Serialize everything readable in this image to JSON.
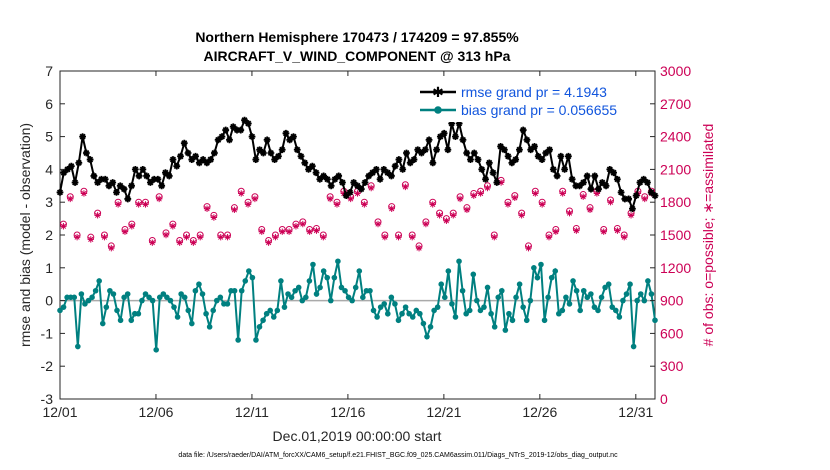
{
  "chart_data": {
    "type": "line",
    "title_line1": "Northern Hemisphere 170473 / 174209 = 97.855%",
    "title_line2": "AIRCRAFT_V_WIND_COMPONENT @ 313 hPa",
    "xlabel": "Dec.01,2019 00:00:00 start",
    "ylabel_left": "rmse and bias (model - observation)",
    "ylabel_right": "# of obs: o=possible; ∗=assimilated",
    "xlim": [
      0,
      31
    ],
    "ylim_left": [
      -3,
      7
    ],
    "ylim_right": [
      0,
      3000
    ],
    "x_ticks": [
      {
        "value": 0,
        "label": "12/01"
      },
      {
        "value": 5,
        "label": "12/06"
      },
      {
        "value": 10,
        "label": "12/11"
      },
      {
        "value": 15,
        "label": "12/16"
      },
      {
        "value": 20,
        "label": "12/21"
      },
      {
        "value": 25,
        "label": "12/26"
      },
      {
        "value": 30,
        "label": "12/31"
      }
    ],
    "y_ticks_left": [
      "7",
      "6",
      "5",
      "4",
      "3",
      "2",
      "1",
      "0",
      "-1",
      "-2",
      "-3"
    ],
    "y_ticks_right": [
      "3000",
      "2700",
      "2400",
      "2100",
      "1800",
      "1500",
      "1200",
      "900",
      "600",
      "300",
      "0"
    ],
    "legend": {
      "location": "top-right",
      "rmse_label": "rmse grand pr = 4.1943",
      "bias_label": "bias grand pr = 0.056655"
    },
    "colors": {
      "rmse": "#000000",
      "bias": "#008080",
      "obs": "#cc0055",
      "zero_line": "#aaaaaa",
      "legend_text": "#1155dd"
    },
    "series": [
      {
        "name": "rmse",
        "marker": "star",
        "values": [
          3.3,
          3.9,
          4.0,
          4.1,
          3.6,
          4.2,
          5.0,
          4.5,
          4.3,
          3.8,
          3.6,
          3.7,
          3.7,
          3.5,
          3.6,
          3.3,
          3.5,
          3.4,
          3.1,
          3.5,
          4.0,
          3.8,
          4.0,
          3.8,
          3.6,
          3.7,
          3.7,
          3.5,
          3.9,
          3.8,
          4.3,
          4.1,
          4.4,
          4.8,
          4.5,
          4.3,
          4.4,
          4.2,
          4.3,
          4.2,
          4.3,
          4.5,
          4.9,
          5.0,
          5.2,
          4.9,
          5.3,
          5.2,
          5.2,
          5.5,
          5.4,
          5.0,
          4.3,
          4.6,
          4.5,
          4.9,
          4.5,
          4.3,
          4.4,
          4.6,
          5.1,
          4.9,
          5.0,
          4.6,
          4.4,
          4.2,
          4.0,
          4.1,
          3.9,
          3.7,
          3.8,
          3.7,
          3.5,
          3.7,
          3.8,
          3.6,
          3.2,
          3.3,
          3.6,
          3.5,
          3.4,
          3.6,
          3.8,
          3.9,
          4.0,
          3.7,
          4.0,
          3.9,
          3.8,
          4.1,
          4.3,
          4.0,
          4.5,
          4.2,
          4.3,
          4.6,
          4.5,
          4.6,
          4.9,
          4.2,
          4.6,
          5.0,
          5.1,
          4.6,
          5.4,
          5.0,
          5.4,
          4.9,
          4.5,
          4.3,
          4.5,
          4.3,
          4.0,
          3.7,
          4.2,
          3.9,
          3.6,
          4.7,
          4.6,
          4.4,
          4.2,
          4.3,
          4.6,
          5.2,
          4.9,
          4.6,
          4.7,
          4.4,
          4.3,
          4.5,
          4.6,
          4.0,
          3.8,
          4.4,
          4.0,
          4.4,
          3.7,
          3.5,
          3.5,
          3.6,
          3.8,
          3.4,
          3.8,
          3.4,
          3.6,
          3.5,
          4.0,
          3.9,
          3.7,
          3.3,
          3.1,
          3.1,
          2.8,
          3.2,
          3.6,
          3.7,
          3.6,
          3.3,
          3.2
        ]
      },
      {
        "name": "bias",
        "marker": "circle",
        "values": [
          -0.3,
          -0.2,
          0.1,
          0.1,
          0.1,
          -1.4,
          0.2,
          -0.1,
          0.0,
          0.1,
          0.3,
          0.6,
          -0.7,
          -0.2,
          0.3,
          0.2,
          -0.3,
          -0.6,
          0.1,
          0.2,
          -0.6,
          -0.4,
          -0.4,
          0.0,
          0.2,
          0.1,
          0.0,
          -1.5,
          0.1,
          0.2,
          0.1,
          0.0,
          -0.2,
          -0.5,
          0.2,
          0.1,
          -0.3,
          -0.7,
          0.3,
          0.5,
          0.2,
          -0.4,
          -0.8,
          -0.3,
          0.0,
          0.1,
          -0.1,
          -0.1,
          0.3,
          0.3,
          -1.2,
          0.3,
          0.6,
          0.9,
          0.7,
          -1.2,
          -0.8,
          -0.6,
          -0.4,
          -0.3,
          -0.5,
          -0.3,
          0.6,
          -0.2,
          0.2,
          0.1,
          0.3,
          0.4,
          0.0,
          0.1,
          0.6,
          1.1,
          0.2,
          0.4,
          0.9,
          0.7,
          0.0,
          0.7,
          1.2,
          0.4,
          0.3,
          0.1,
          0.0,
          0.4,
          0.9,
          0.1,
          0.3,
          0.3,
          -0.3,
          -0.5,
          -0.2,
          -0.1,
          -0.4,
          0.1,
          -0.1,
          -0.6,
          -0.4,
          -0.2,
          -0.4,
          -0.5,
          -0.3,
          -0.4,
          -0.7,
          -1.1,
          -0.8,
          -0.3,
          -0.2,
          0.5,
          0.1,
          0.9,
          -0.1,
          -0.5,
          1.2,
          0.3,
          -0.4,
          -0.3,
          0.8,
          0.0,
          -0.3,
          -0.2,
          0.4,
          -0.4,
          -0.8,
          0.1,
          0.3,
          -0.9,
          -0.4,
          -0.6,
          0.1,
          0.5,
          -0.2,
          -0.6,
          0.0,
          1.0,
          0.7,
          1.1,
          -0.6,
          0.1,
          0.7,
          0.9,
          -0.4,
          -0.3,
          0.1,
          -0.1,
          0.6,
          0.3,
          -0.3,
          0.3,
          0.1,
          0.2,
          -0.2,
          -0.3,
          0.1,
          0.4,
          0.5,
          -0.2,
          -0.3,
          -0.5,
          0.0,
          0.2,
          0.5,
          -1.4,
          0.0,
          0.2,
          0.0,
          0.6,
          0.2,
          -0.6
        ]
      },
      {
        "name": "obs possible",
        "marker": "open-circle",
        "values": [
          1600,
          1850,
          1500,
          1900,
          1480,
          1700,
          1500,
          1400,
          1800,
          1550,
          1600,
          1800,
          1800,
          1450,
          1850,
          1520,
          1600,
          1450,
          1500,
          1450,
          1500,
          1760,
          1680,
          1500,
          1500,
          1750,
          1900,
          1800,
          1850,
          1550,
          1450,
          1500,
          1550,
          1550,
          1600,
          1620,
          1550,
          1560,
          1500,
          1850,
          1800,
          1900,
          1850,
          1900,
          1800,
          1950,
          1620,
          1500,
          1760,
          1500,
          1960,
          1500,
          1400,
          1620,
          1800,
          1700,
          1650,
          1700,
          1850,
          1750,
          1880,
          1900,
          1950,
          1500,
          2000,
          1800,
          1860,
          1700,
          1400,
          1900,
          1800,
          1500,
          1550,
          1900,
          1720,
          1560,
          1870,
          1750,
          1900,
          1550,
          1820,
          1560,
          1500,
          1700,
          1900,
          1850,
          1900
        ]
      },
      {
        "name": "obs assimilated",
        "marker": "star",
        "values": [
          1580,
          1830,
          1480,
          1880,
          1460,
          1680,
          1480,
          1380,
          1780,
          1530,
          1580,
          1780,
          1780,
          1430,
          1830,
          1500,
          1580,
          1430,
          1480,
          1430,
          1480,
          1740,
          1660,
          1480,
          1480,
          1730,
          1880,
          1780,
          1830,
          1530,
          1430,
          1480,
          1530,
          1530,
          1580,
          1600,
          1530,
          1540,
          1480,
          1830,
          1780,
          1880,
          1830,
          1880,
          1780,
          1930,
          1600,
          1480,
          1740,
          1480,
          1940,
          1480,
          1380,
          1600,
          1780,
          1680,
          1630,
          1680,
          1830,
          1730,
          1860,
          1880,
          1930,
          1480,
          1980,
          1780,
          1840,
          1680,
          1380,
          1880,
          1780,
          1480,
          1530,
          1880,
          1700,
          1540,
          1850,
          1730,
          1880,
          1530,
          1800,
          1540,
          1480,
          1680,
          1880,
          1830,
          1880
        ]
      }
    ],
    "footer": "data file: /Users/raeder/DAI/ATM_forcXX/CAM6_setup/f.e21.FHIST_BGC.f09_025.CAM6assim.011/Diags_NTrS_2019-12/obs_diag_output.nc"
  }
}
